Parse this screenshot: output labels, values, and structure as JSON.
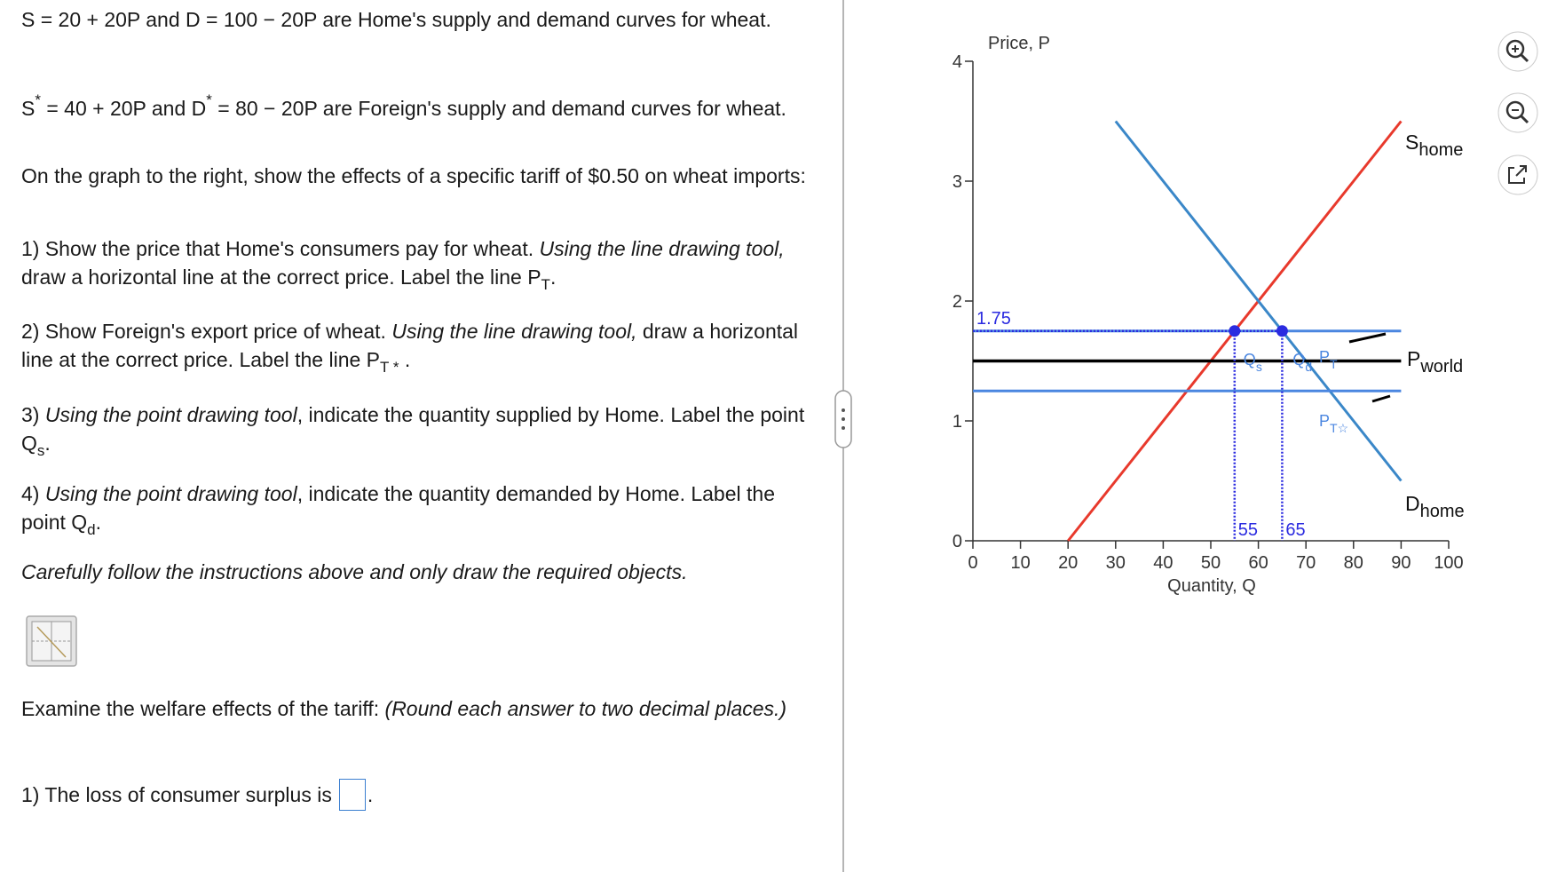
{
  "question": {
    "paragraphs": [
      [
        {
          "text": "S = 20 + 20P and D = 100 − 20P are Home's supply and demand curves for wheat."
        }
      ],
      [
        {
          "text": "S"
        },
        {
          "sup": "*"
        },
        {
          "text": " = 40 + 20P and D"
        },
        {
          "sup": "*"
        },
        {
          "text": " = 80 − 20P are Foreign's supply and demand curves for wheat."
        }
      ],
      [
        {
          "text": "On the graph to the right, show the effects of a specific tariff of $0.50 on wheat imports:"
        }
      ],
      [
        {
          "text": "1) Show the price that Home's consumers pay for wheat. "
        },
        {
          "italic": "Using the line drawing tool,"
        },
        {
          "text": " draw a horizontal line at the correct price.  Label the line P"
        },
        {
          "sub": "T"
        },
        {
          "text": "."
        }
      ],
      [
        {
          "text": "2) Show Foreign's export price of wheat. "
        },
        {
          "italic": "Using the line drawing tool,"
        },
        {
          "text": " draw a horizontal line at the correct price.  Label the line P"
        },
        {
          "sub": "T *"
        },
        {
          "text": " ."
        }
      ],
      [
        {
          "text": "3)  "
        },
        {
          "italic": "Using the point drawing tool"
        },
        {
          "text": ", indicate the quantity supplied by Home. Label the point Q"
        },
        {
          "sub": "s"
        },
        {
          "text": "."
        }
      ],
      [
        {
          "text": "4)  "
        },
        {
          "italic": "Using the point drawing tool"
        },
        {
          "text": ", indicate the quantity demanded by Home. Label the point Q"
        },
        {
          "sub": "d"
        },
        {
          "text": "."
        }
      ],
      [
        {
          "italic": "Carefully follow the instructions above and only draw the required objects."
        }
      ],
      [
        {
          "text": "Examine the welfare effects of the tariff: "
        },
        {
          "italic": "(Round each answer to two decimal places.)"
        }
      ]
    ],
    "answer_prompt": {
      "before": "1) The loss of consumer surplus is",
      "after": "."
    }
  },
  "chart_data": {
    "type": "line",
    "y_label": "Price, P",
    "x_label": "Quantity, Q",
    "xlim": [
      0,
      100
    ],
    "ylim": [
      0,
      4
    ],
    "xticks": [
      0,
      10,
      20,
      30,
      40,
      50,
      60,
      70,
      80,
      90,
      100
    ],
    "yticks": [
      0,
      1,
      2,
      3,
      4
    ],
    "series": [
      {
        "name": "S",
        "name_sub": "home",
        "color": "#e8392c",
        "x": [
          20,
          90
        ],
        "values": [
          0,
          3.5
        ]
      },
      {
        "name": "D",
        "name_sub": "home",
        "color": "#3a87c8",
        "x": [
          30,
          90
        ],
        "values": [
          3.5,
          0.5
        ]
      },
      {
        "name": "P",
        "name_sub": "world",
        "color": "#000000",
        "x": [
          0,
          90
        ],
        "values": [
          1.5,
          1.5
        ]
      },
      {
        "name": "P",
        "name_sub": "T",
        "color": "#4a86e0",
        "x": [
          0,
          90
        ],
        "values": [
          1.75,
          1.75
        ]
      },
      {
        "name": "P",
        "name_sub": "T☆",
        "color": "#4a86e0",
        "x": [
          0,
          90
        ],
        "values": [
          1.25,
          1.25
        ]
      }
    ],
    "points": [
      {
        "name": "Q",
        "name_sub": "s",
        "x": 55,
        "y": 1.75,
        "color": "#2b2be0"
      },
      {
        "name": "Q",
        "name_sub": "d",
        "x": 65,
        "y": 1.75,
        "color": "#2b2be0"
      }
    ]
  }
}
